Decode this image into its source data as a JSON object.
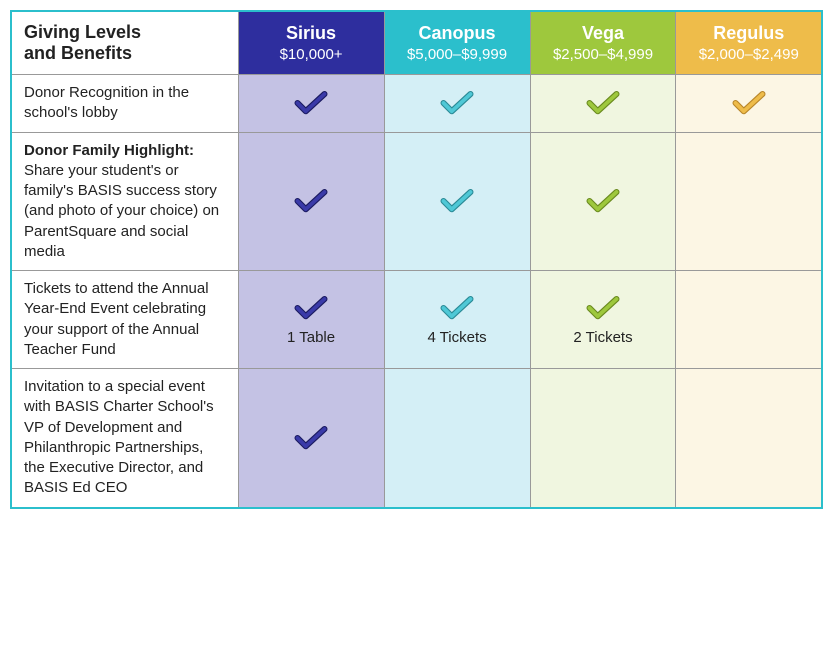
{
  "table": {
    "header_label_line1": "Giving Levels",
    "header_label_line2": "and Benefits",
    "tiers": [
      {
        "key": "sirius",
        "name": "Sirius",
        "range": "$10,000+",
        "header_bg": "#2e2e9e",
        "header_text": "#ffffff",
        "cell_bg": "#c4c2e4",
        "check_fill": "#3a3aa8",
        "check_stroke": "#1a1a60"
      },
      {
        "key": "canopus",
        "name": "Canopus",
        "range": "$5,000–$9,999",
        "header_bg": "#2bbfcc",
        "header_text": "#ffffff",
        "cell_bg": "#d4eff6",
        "check_fill": "#4fc8d6",
        "check_stroke": "#2a8a96"
      },
      {
        "key": "vega",
        "name": "Vega",
        "range": "$2,500–$4,999",
        "header_bg": "#9ec83d",
        "header_text": "#ffffff",
        "cell_bg": "#f0f6e0",
        "check_fill": "#9ec83d",
        "check_stroke": "#6a8a1f"
      },
      {
        "key": "regulus",
        "name": "Regulus",
        "range": "$2,000–$2,499",
        "header_bg": "#eebc4a",
        "header_text": "#ffffff",
        "cell_bg": "#fcf6e4",
        "check_fill": "#eebc4a",
        "check_stroke": "#b8862a"
      }
    ],
    "benefits": [
      {
        "key": "lobby",
        "bold": "",
        "text": "Donor Recognition in the school's lobby",
        "cells": {
          "sirius": {
            "check": true,
            "detail": ""
          },
          "canopus": {
            "check": true,
            "detail": ""
          },
          "vega": {
            "check": true,
            "detail": ""
          },
          "regulus": {
            "check": true,
            "detail": ""
          }
        }
      },
      {
        "key": "highlight",
        "bold": "Donor Family Highlight:",
        "text": " Share your student's or family's BASIS success story (and photo of your choice) on ParentSquare and social media",
        "cells": {
          "sirius": {
            "check": true,
            "detail": ""
          },
          "canopus": {
            "check": true,
            "detail": ""
          },
          "vega": {
            "check": true,
            "detail": ""
          },
          "regulus": {
            "check": false,
            "detail": ""
          }
        }
      },
      {
        "key": "tickets",
        "bold": "",
        "text": "Tickets to attend the Annual Year-End Event celebrating your support of the Annual Teacher Fund",
        "cells": {
          "sirius": {
            "check": true,
            "detail": "1 Table"
          },
          "canopus": {
            "check": true,
            "detail": "4 Tickets"
          },
          "vega": {
            "check": true,
            "detail": "2 Tickets"
          },
          "regulus": {
            "check": false,
            "detail": ""
          }
        }
      },
      {
        "key": "invitation",
        "bold": "",
        "text": "Invitation to a special event with BASIS Charter School's VP of Development and Philanthropic Partnerships, the Executive Director, and BASIS Ed CEO",
        "cells": {
          "sirius": {
            "check": true,
            "detail": ""
          },
          "canopus": {
            "check": false,
            "detail": ""
          },
          "vega": {
            "check": false,
            "detail": ""
          },
          "regulus": {
            "check": false,
            "detail": ""
          }
        }
      }
    ]
  }
}
